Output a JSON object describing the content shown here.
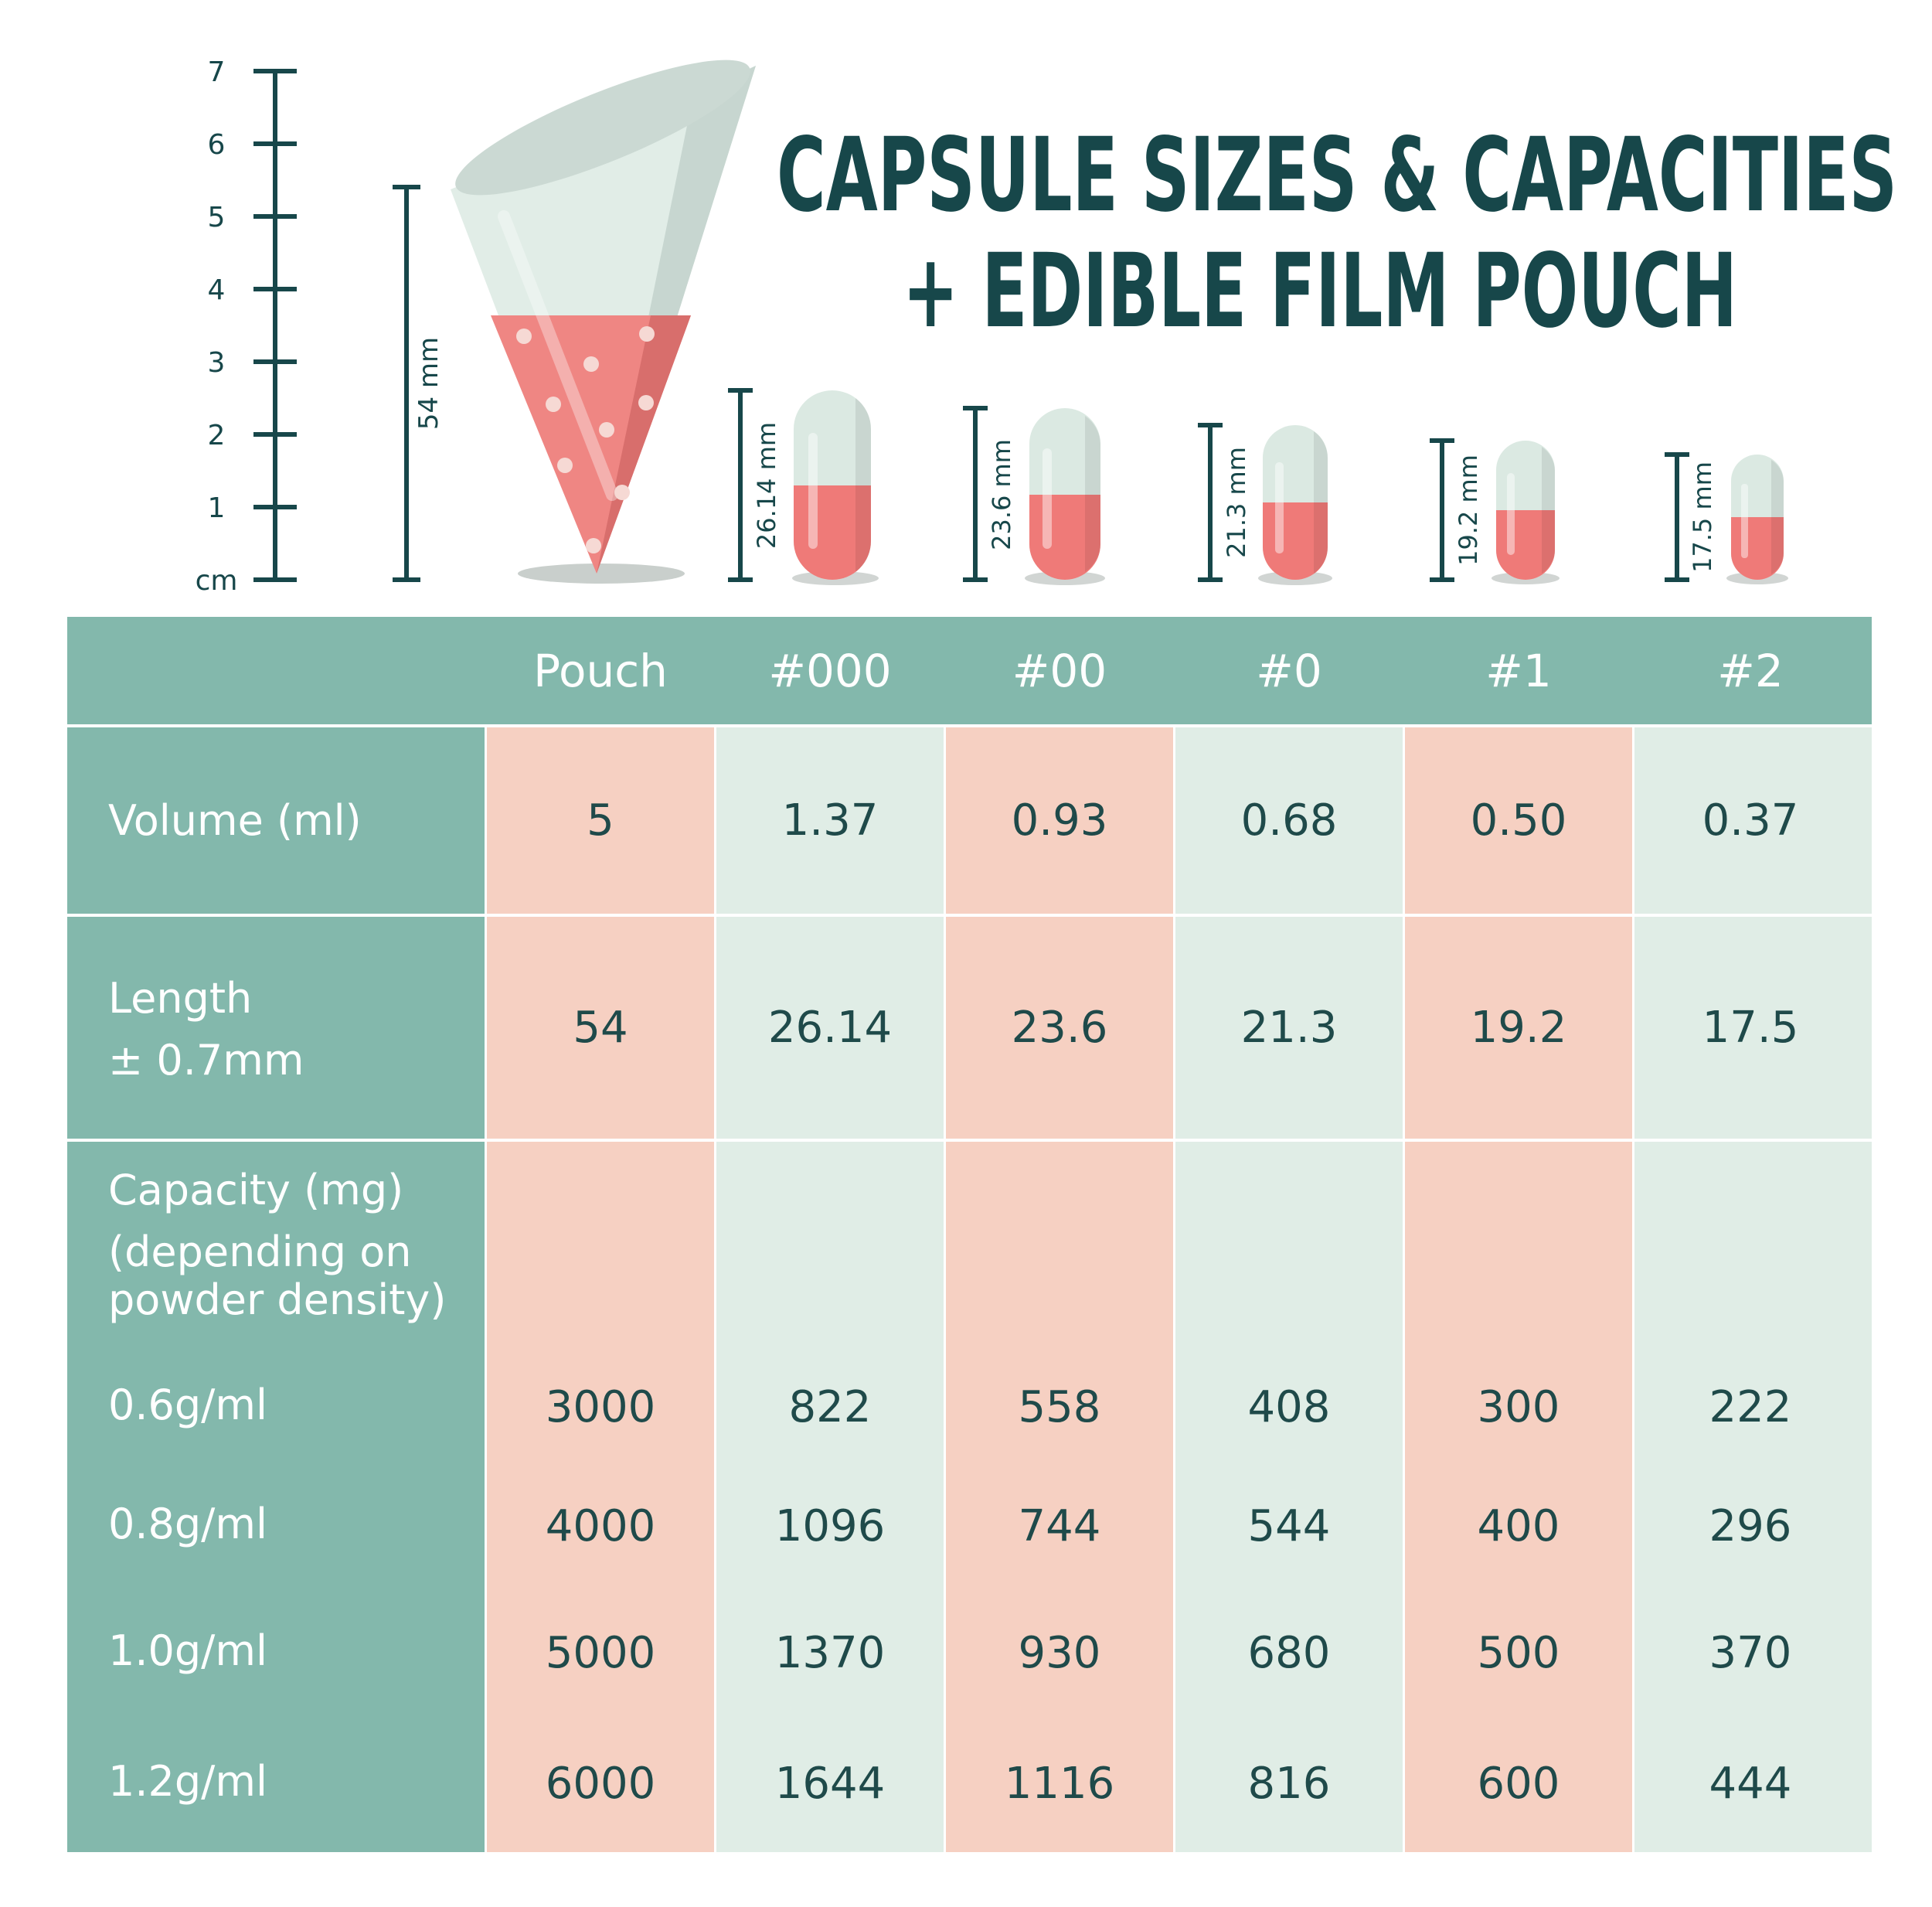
{
  "title": {
    "line1": "CAPSULE SIZES & CAPACITIES",
    "line2": "+ EDIBLE FILM POUCH"
  },
  "ruler": {
    "ticks": [
      "7",
      "6",
      "5",
      "4",
      "3",
      "2",
      "1"
    ],
    "unit": "cm"
  },
  "illustrations": {
    "pouch_length_label": "54 mm",
    "capsule_length_labels": [
      "26.14 mm",
      "23.6 mm",
      "21.3 mm",
      "19.2 mm",
      "17.5 mm"
    ]
  },
  "colors": {
    "header_teal": "#83b8ac",
    "pink_cell": "#f6d0c2",
    "mint_cell": "#e0ede6",
    "dark_text": "#1f4a4a",
    "capsule_red": "#ef7a78",
    "capsule_cap": "#dbe9e2"
  },
  "table": {
    "columns": [
      "Pouch",
      "#000",
      "#00",
      "#0",
      "#1",
      "#2"
    ],
    "rows": {
      "volume": {
        "label": "Volume (ml)",
        "values": [
          "5",
          "1.37",
          "0.93",
          "0.68",
          "0.50",
          "0.37"
        ]
      },
      "length": {
        "label_line1": "Length",
        "label_line2": "± 0.7mm",
        "values": [
          "54",
          "26.14",
          "23.6",
          "21.3",
          "19.2",
          "17.5"
        ]
      },
      "capacity": {
        "label_lines": [
          "Capacity (mg)",
          "(depending on",
          "powder density)"
        ],
        "densities": [
          {
            "label": "0.6g/ml",
            "values": [
              "3000",
              "822",
              "558",
              "408",
              "300",
              "222"
            ]
          },
          {
            "label": "0.8g/ml",
            "values": [
              "4000",
              "1096",
              "744",
              "544",
              "400",
              "296"
            ]
          },
          {
            "label": "1.0g/ml",
            "values": [
              "5000",
              "1370",
              "930",
              "680",
              "500",
              "370"
            ]
          },
          {
            "label": "1.2g/ml",
            "values": [
              "6000",
              "1644",
              "1116",
              "816",
              "600",
              "444"
            ]
          }
        ]
      }
    }
  }
}
